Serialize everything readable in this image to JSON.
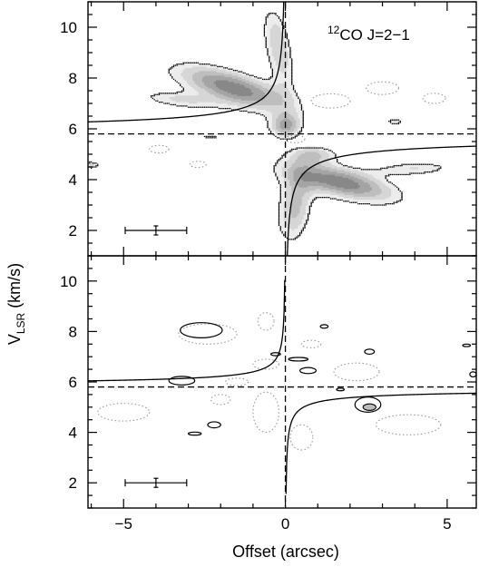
{
  "chart_data": [
    {
      "type": "contour",
      "panel": "top",
      "annotation": {
        "isotope": "12",
        "molecule": "CO J=2−1"
      },
      "xlim": [
        -6.1,
        5.9
      ],
      "ylim": [
        1.0,
        11.0
      ],
      "yticks": [
        2,
        4,
        6,
        8,
        10
      ],
      "ytick_labels": [
        "2",
        "4",
        "6",
        "8",
        "10"
      ],
      "xticks": [
        -5,
        0,
        5
      ],
      "systemic_velocity": 5.8,
      "source_offset": 0,
      "beam_bar": {
        "x": -4.0,
        "y": 2.0,
        "half_width": 0.95
      },
      "keplerian_curve": {
        "v_sys": 5.8,
        "k": 1.17
      },
      "emission_blobs": [
        {
          "x": -1.6,
          "y": 7.6,
          "sx": 1.35,
          "sy": 0.45,
          "amp": 1.0,
          "rot": -0.38
        },
        {
          "x": -0.2,
          "y": 9.2,
          "sx": 0.3,
          "sy": 1.2,
          "amp": 0.6,
          "rot": 0.15
        },
        {
          "x": 0.0,
          "y": 6.1,
          "sx": 0.35,
          "sy": 0.35,
          "amp": 0.75,
          "rot": 0
        },
        {
          "x": 1.7,
          "y": 3.9,
          "sx": 1.3,
          "sy": 0.42,
          "amp": 1.0,
          "rot": -0.3
        },
        {
          "x": 0.3,
          "y": 2.9,
          "sx": 0.38,
          "sy": 1.0,
          "amp": 0.65,
          "rot": -0.1
        },
        {
          "x": -3.3,
          "y": 7.15,
          "sx": 0.9,
          "sy": 0.22,
          "amp": 0.45,
          "rot": -0.15
        },
        {
          "x": 4.0,
          "y": 4.45,
          "sx": 0.9,
          "sy": 0.2,
          "amp": 0.45,
          "rot": 0.05
        },
        {
          "x": 0.9,
          "y": 5.0,
          "sx": 0.55,
          "sy": 0.25,
          "amp": 0.5,
          "rot": 0
        },
        {
          "x": 3.4,
          "y": 6.3,
          "sx": 0.15,
          "sy": 0.08,
          "amp": 0.5,
          "rot": 0
        },
        {
          "x": -6.0,
          "y": 4.6,
          "sx": 0.2,
          "sy": 0.1,
          "amp": 0.5,
          "rot": 0
        },
        {
          "x": -2.3,
          "y": 5.7,
          "sx": 0.2,
          "sy": 0.04,
          "amp": 0.4,
          "rot": 0
        }
      ],
      "contour_levels": [
        0.3,
        0.45,
        0.6,
        0.75,
        0.9
      ],
      "fill_colors": [
        "#ececec",
        "#d6d6d6",
        "#bebebe",
        "#a4a4a4",
        "#888888"
      ],
      "negative_contours": [
        {
          "x": 1.4,
          "y": 7.1,
          "rx": 0.6,
          "ry": 0.28
        },
        {
          "x": 3.0,
          "y": 7.6,
          "rx": 0.5,
          "ry": 0.25
        },
        {
          "x": 4.6,
          "y": 7.2,
          "rx": 0.35,
          "ry": 0.2
        },
        {
          "x": -3.9,
          "y": 5.2,
          "rx": 0.3,
          "ry": 0.15
        },
        {
          "x": -2.7,
          "y": 4.6,
          "rx": 0.25,
          "ry": 0.12
        },
        {
          "x": 0.3,
          "y": 5.6,
          "rx": 0.3,
          "ry": 0.15
        }
      ]
    },
    {
      "type": "contour",
      "panel": "bottom",
      "xlim": [
        -6.1,
        5.9
      ],
      "ylim": [
        1.0,
        11.0
      ],
      "yticks": [
        2,
        4,
        6,
        8,
        10
      ],
      "ytick_labels": [
        "2",
        "4",
        "6",
        "8",
        "10"
      ],
      "xticks": [
        -5,
        0,
        5
      ],
      "xtick_labels": [
        "−5",
        "0",
        "5"
      ],
      "xlabel": "Offset (arcsec)",
      "ylabel_main": "V",
      "ylabel_sub": "LSR",
      "ylabel_unit": " (km/s)",
      "systemic_velocity": 5.8,
      "source_offset": 0,
      "beam_bar": {
        "x": -4.0,
        "y": 2.0,
        "half_width": 0.95
      },
      "keplerian_curve": {
        "v_sys": 5.8,
        "k": 0.6
      },
      "positive_contours": [
        {
          "x": -2.6,
          "y": 8.05,
          "rx": 0.65,
          "ry": 0.3
        },
        {
          "x": -3.2,
          "y": 6.05,
          "rx": 0.4,
          "ry": 0.17
        },
        {
          "x": -2.2,
          "y": 4.3,
          "rx": 0.2,
          "ry": 0.12
        },
        {
          "x": -2.8,
          "y": 3.95,
          "rx": 0.2,
          "ry": 0.06
        },
        {
          "x": -0.3,
          "y": 7.1,
          "rx": 0.15,
          "ry": 0.06
        },
        {
          "x": 0.4,
          "y": 6.9,
          "rx": 0.3,
          "ry": 0.07
        },
        {
          "x": 0.7,
          "y": 6.45,
          "rx": 0.25,
          "ry": 0.12
        },
        {
          "x": 1.2,
          "y": 8.2,
          "rx": 0.12,
          "ry": 0.07
        },
        {
          "x": 2.6,
          "y": 7.2,
          "rx": 0.15,
          "ry": 0.1
        },
        {
          "x": 2.55,
          "y": 5.1,
          "rx": 0.4,
          "ry": 0.3
        },
        {
          "x": 5.6,
          "y": 7.45,
          "rx": 0.12,
          "ry": 0.05
        },
        {
          "x": 5.8,
          "y": 6.3,
          "rx": 0.1,
          "ry": 0.1
        },
        {
          "x": 1.7,
          "y": 5.7,
          "rx": 0.12,
          "ry": 0.05
        }
      ],
      "inner_contours": [
        {
          "x": 2.6,
          "y": 5.0,
          "rx": 0.2,
          "ry": 0.13
        }
      ],
      "negative_contours": [
        {
          "x": -2.4,
          "y": 7.9,
          "rx": 0.9,
          "ry": 0.4
        },
        {
          "x": -0.6,
          "y": 8.4,
          "rx": 0.25,
          "ry": 0.35
        },
        {
          "x": 0.8,
          "y": 7.5,
          "rx": 0.3,
          "ry": 0.15
        },
        {
          "x": -0.6,
          "y": 6.7,
          "rx": 0.4,
          "ry": 0.2
        },
        {
          "x": 2.2,
          "y": 6.4,
          "rx": 0.7,
          "ry": 0.35
        },
        {
          "x": -1.5,
          "y": 6.0,
          "rx": 0.35,
          "ry": 0.15
        },
        {
          "x": -5.0,
          "y": 4.8,
          "rx": 0.8,
          "ry": 0.35
        },
        {
          "x": -0.6,
          "y": 4.8,
          "rx": 0.4,
          "ry": 0.8
        },
        {
          "x": 0.5,
          "y": 3.8,
          "rx": 0.35,
          "ry": 0.5
        },
        {
          "x": 3.8,
          "y": 4.3,
          "rx": 1.0,
          "ry": 0.4
        },
        {
          "x": -2.0,
          "y": 5.3,
          "rx": 0.3,
          "ry": 0.2
        }
      ]
    }
  ]
}
